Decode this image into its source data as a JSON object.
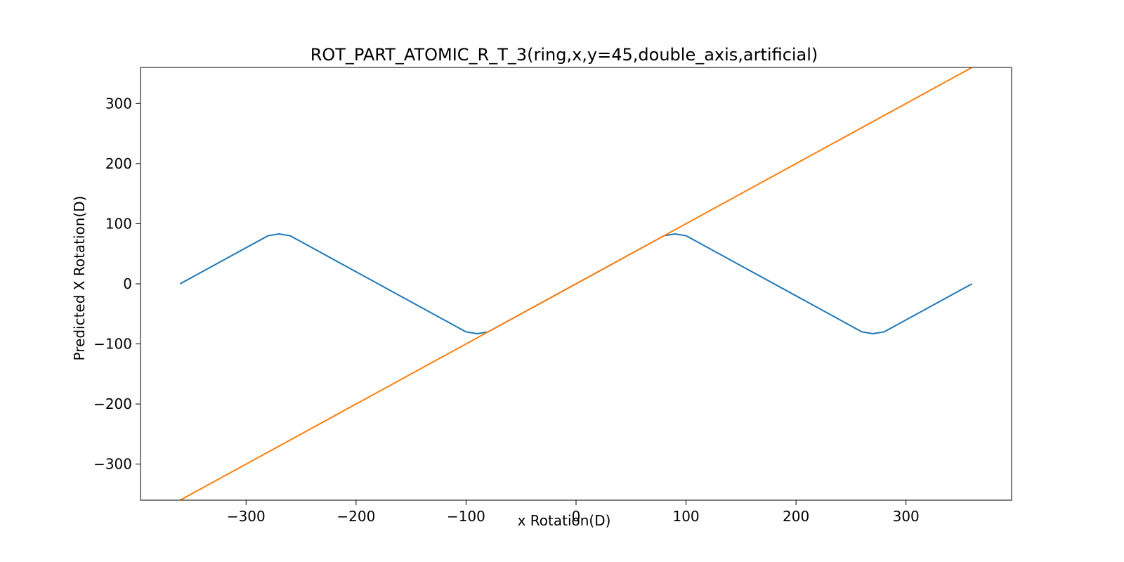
{
  "chart_data": {
    "type": "line",
    "title": "ROT_PART_ATOMIC_R_T_3(ring,x,y=45,double_axis,artificial)",
    "xlabel": "x Rotation(D)",
    "ylabel": "Predicted X Rotation(D)",
    "xlim": [
      -396,
      396
    ],
    "ylim": [
      -360,
      360
    ],
    "xticks": [
      -300,
      -200,
      -100,
      0,
      100,
      200,
      300
    ],
    "yticks": [
      -300,
      -200,
      -100,
      0,
      100,
      200,
      300
    ],
    "xtick_labels": [
      "−300",
      "−200",
      "−100",
      "0",
      "100",
      "200",
      "300"
    ],
    "ytick_labels": [
      "−300",
      "−200",
      "−100",
      "0",
      "100",
      "200",
      "300"
    ],
    "grid": false,
    "series": [
      {
        "color": "#1f77b4",
        "x": [
          -360,
          -280,
          -270,
          -260,
          -100,
          -90,
          -80,
          80,
          90,
          100,
          260,
          270,
          280,
          360
        ],
        "y": [
          0,
          80,
          83,
          80,
          -80,
          -83,
          -80,
          80,
          83,
          80,
          -80,
          -83,
          -80,
          0
        ]
      },
      {
        "color": "#ff7f0e",
        "x": [
          -360,
          360
        ],
        "y": [
          -360,
          360
        ]
      }
    ]
  }
}
